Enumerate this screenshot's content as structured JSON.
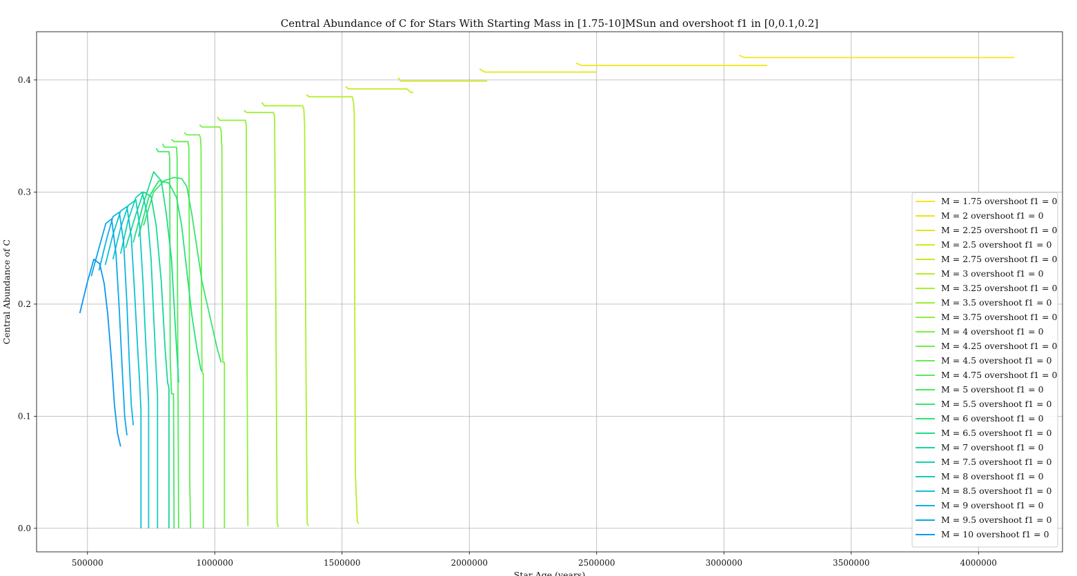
{
  "chart_data": {
    "type": "line",
    "title": "Central Abundance of C for Stars With Starting Mass in [1.75-10]MSun and overshoot f1 in [0,0.1,0.2]",
    "xlabel": "Star Age (years)",
    "ylabel": "Central Abundance of C",
    "xlim": [
      300000,
      4330000
    ],
    "ylim": [
      -0.021,
      0.443
    ],
    "xticks": [
      500000,
      1000000,
      1500000,
      2000000,
      2500000,
      3000000,
      3500000,
      4000000
    ],
    "xtick_labels": [
      "500000",
      "1000000",
      "1500000",
      "2000000",
      "2500000",
      "3000000",
      "3500000",
      "4000000"
    ],
    "yticks": [
      0.0,
      0.1,
      0.2,
      0.3,
      0.4
    ],
    "ytick_labels": [
      "0.0",
      "0.1",
      "0.2",
      "0.3",
      "0.4"
    ],
    "grid": true,
    "legend_position": "lower-right",
    "series": [
      {
        "name": "M = 1.75 overshoot f1 = 0",
        "color": "#f5e61a",
        "x": [
          3060000,
          3080000,
          3200000,
          3600000,
          4000000,
          4140000
        ],
        "y": [
          0.422,
          0.42,
          0.42,
          0.42,
          0.42,
          0.42
        ]
      },
      {
        "name": "M = 2 overshoot f1 = 0",
        "color": "#eee614",
        "x": [
          2420000,
          2440000,
          2600000,
          2900000,
          3100000,
          3170000
        ],
        "y": [
          0.415,
          0.413,
          0.413,
          0.413,
          0.413,
          0.413
        ]
      },
      {
        "name": "M = 2.25 overshoot f1 = 0",
        "color": "#e2e614",
        "x": [
          2040000,
          2060000,
          2200000,
          2400000,
          2500000
        ],
        "y": [
          0.41,
          0.407,
          0.407,
          0.407,
          0.407
        ]
      },
      {
        "name": "M = 2.5 overshoot f1 = 0",
        "color": "#d4e818",
        "x": [
          1720000,
          1730000,
          1850000,
          1980000,
          2070000
        ],
        "y": [
          0.402,
          0.399,
          0.399,
          0.399,
          0.399
        ]
      },
      {
        "name": "M = 2.75 overshoot f1 = 0",
        "color": "#c6ea1e",
        "x": [
          1515000,
          1525000,
          1600000,
          1700000,
          1755000,
          1770000,
          1780000
        ],
        "y": [
          0.394,
          0.392,
          0.392,
          0.392,
          0.392,
          0.389,
          0.389
        ]
      },
      {
        "name": "M = 3 overshoot f1 = 0",
        "color": "#b8ed24",
        "x": [
          1360000,
          1370000,
          1450000,
          1540000,
          1545000,
          1548000,
          1550000,
          1552000,
          1560000,
          1565000
        ],
        "y": [
          0.387,
          0.385,
          0.385,
          0.385,
          0.38,
          0.37,
          0.2,
          0.05,
          0.006,
          0.004
        ]
      },
      {
        "name": "M = 3.25 overshoot f1 = 0",
        "color": "#aaf02a",
        "x": [
          1185000,
          1195000,
          1270000,
          1345000,
          1350000,
          1353000,
          1358000,
          1363000,
          1368000
        ],
        "y": [
          0.38,
          0.377,
          0.377,
          0.377,
          0.374,
          0.36,
          0.15,
          0.005,
          0.002
        ]
      },
      {
        "name": "M = 3.5 overshoot f1 = 0",
        "color": "#9cf030",
        "x": [
          1115000,
          1125000,
          1180000,
          1230000,
          1235000,
          1240000,
          1245000,
          1250000
        ],
        "y": [
          0.373,
          0.371,
          0.371,
          0.371,
          0.368,
          0.2,
          0.005,
          0.001
        ]
      },
      {
        "name": "M = 3.75 overshoot f1 = 0",
        "color": "#8ef038",
        "x": [
          1010000,
          1020000,
          1070000,
          1120000,
          1124000,
          1127000,
          1130000
        ],
        "y": [
          0.367,
          0.364,
          0.364,
          0.364,
          0.36,
          0.15,
          0.002
        ]
      },
      {
        "name": "M = 4 overshoot f1 = 0",
        "color": "#7eef40",
        "x": [
          940000,
          950000,
          980000,
          1020000,
          1025000,
          1028000,
          1030000,
          1032000,
          1035000,
          1038000,
          1038000
        ],
        "y": [
          0.36,
          0.358,
          0.358,
          0.358,
          0.355,
          0.34,
          0.16,
          0.148,
          0.148,
          0.148,
          0.0
        ]
      },
      {
        "name": "M = 4.25 overshoot f1 = 0",
        "color": "#70ee48",
        "x": [
          880000,
          890000,
          920000,
          940000,
          944000,
          946000,
          948000,
          950000,
          952000,
          955000,
          955000
        ],
        "y": [
          0.353,
          0.351,
          0.351,
          0.351,
          0.348,
          0.34,
          0.2,
          0.14,
          0.138,
          0.138,
          0.0
        ]
      },
      {
        "name": "M = 4.5 overshoot f1 = 0",
        "color": "#62ec50",
        "x": [
          830000,
          840000,
          870000,
          895000,
          898000,
          900000,
          902000,
          905000
        ],
        "y": [
          0.347,
          0.345,
          0.345,
          0.345,
          0.34,
          0.25,
          0.04,
          0.0
        ]
      },
      {
        "name": "M = 4.75 overshoot f1 = 0",
        "color": "#54ea58",
        "x": [
          795000,
          802000,
          830000,
          850000,
          852000,
          854000,
          856000,
          858000
        ],
        "y": [
          0.343,
          0.34,
          0.34,
          0.34,
          0.33,
          0.2,
          0.1,
          0.0
        ]
      },
      {
        "name": "M = 5 overshoot f1 = 0",
        "color": "#46e860",
        "x": [
          770000,
          778000,
          800000,
          820000,
          823000,
          825000,
          830000,
          838000,
          840000
        ],
        "y": [
          0.339,
          0.336,
          0.336,
          0.336,
          0.33,
          0.15,
          0.12,
          0.12,
          0.0
        ]
      },
      {
        "name": "M = 5.5 overshoot f1 = 0",
        "color": "#38e46a",
        "x": [
          720000,
          760000,
          800000,
          840000,
          870000,
          890000,
          910000,
          930000,
          950000,
          980000,
          1010000,
          1025000
        ],
        "y": [
          0.27,
          0.3,
          0.31,
          0.313,
          0.312,
          0.305,
          0.28,
          0.25,
          0.22,
          0.19,
          0.16,
          0.148
        ]
      },
      {
        "name": "M = 6 overshoot f1 = 0",
        "color": "#2ae274",
        "x": [
          700000,
          740000,
          780000,
          820000,
          850000,
          870000,
          890000,
          910000,
          930000,
          945000,
          950000
        ],
        "y": [
          0.26,
          0.295,
          0.31,
          0.308,
          0.295,
          0.27,
          0.23,
          0.19,
          0.16,
          0.142,
          0.14
        ]
      },
      {
        "name": "M = 6.5 overshoot f1 = 0",
        "color": "#1cde84",
        "x": [
          680000,
          720000,
          760000,
          790000,
          810000,
          830000,
          845000,
          858000
        ],
        "y": [
          0.255,
          0.29,
          0.318,
          0.31,
          0.28,
          0.24,
          0.18,
          0.13
        ]
      },
      {
        "name": "M = 7 overshoot f1 = 0",
        "color": "#14d898",
        "x": [
          650000,
          690000,
          720000,
          750000,
          770000,
          790000,
          805000,
          815000,
          820000,
          820000
        ],
        "y": [
          0.25,
          0.28,
          0.3,
          0.296,
          0.27,
          0.22,
          0.16,
          0.13,
          0.125,
          0.0
        ]
      },
      {
        "name": "M = 7.5 overshoot f1 = 0",
        "color": "#12d2b0",
        "x": [
          630000,
          660000,
          690000,
          715000,
          735000,
          750000,
          760000,
          768000,
          775000,
          775000
        ],
        "y": [
          0.245,
          0.275,
          0.295,
          0.3,
          0.28,
          0.24,
          0.19,
          0.15,
          0.118,
          0.0
        ]
      },
      {
        "name": "M = 8 overshoot f1 = 0",
        "color": "#10cac4",
        "x": [
          600000,
          630000,
          660000,
          690000,
          705000,
          718000,
          728000,
          735000,
          740000,
          740000
        ],
        "y": [
          0.24,
          0.268,
          0.288,
          0.293,
          0.27,
          0.22,
          0.17,
          0.14,
          0.11,
          0.0
        ]
      },
      {
        "name": "M = 8.5 overshoot f1 = 0",
        "color": "#0ec0d4",
        "x": [
          570000,
          600000,
          630000,
          655000,
          672000,
          685000,
          696000,
          705000,
          710000,
          710000
        ],
        "y": [
          0.235,
          0.262,
          0.283,
          0.287,
          0.26,
          0.21,
          0.165,
          0.13,
          0.105,
          0.0
        ]
      },
      {
        "name": "M = 9 overshoot f1 = 0",
        "color": "#0cb4e2",
        "x": [
          545000,
          575000,
          600000,
          625000,
          642000,
          655000,
          664000,
          672000,
          680000
        ],
        "y": [
          0.23,
          0.258,
          0.278,
          0.282,
          0.255,
          0.2,
          0.15,
          0.11,
          0.092
        ]
      },
      {
        "name": "M = 9.5 overshoot f1 = 0",
        "color": "#0aa6ec",
        "x": [
          515000,
          545000,
          572000,
          595000,
          612000,
          625000,
          637000,
          646000,
          655000
        ],
        "y": [
          0.225,
          0.25,
          0.272,
          0.276,
          0.245,
          0.195,
          0.14,
          0.1,
          0.083
        ]
      },
      {
        "name": "M = 10 overshoot f1 = 0",
        "color": "#0a96f0",
        "x": [
          470000,
          500000,
          525000,
          548000,
          566000,
          580000,
          594000,
          606000,
          618000,
          630000
        ],
        "y": [
          0.192,
          0.22,
          0.24,
          0.236,
          0.218,
          0.19,
          0.15,
          0.11,
          0.085,
          0.073
        ]
      }
    ]
  }
}
